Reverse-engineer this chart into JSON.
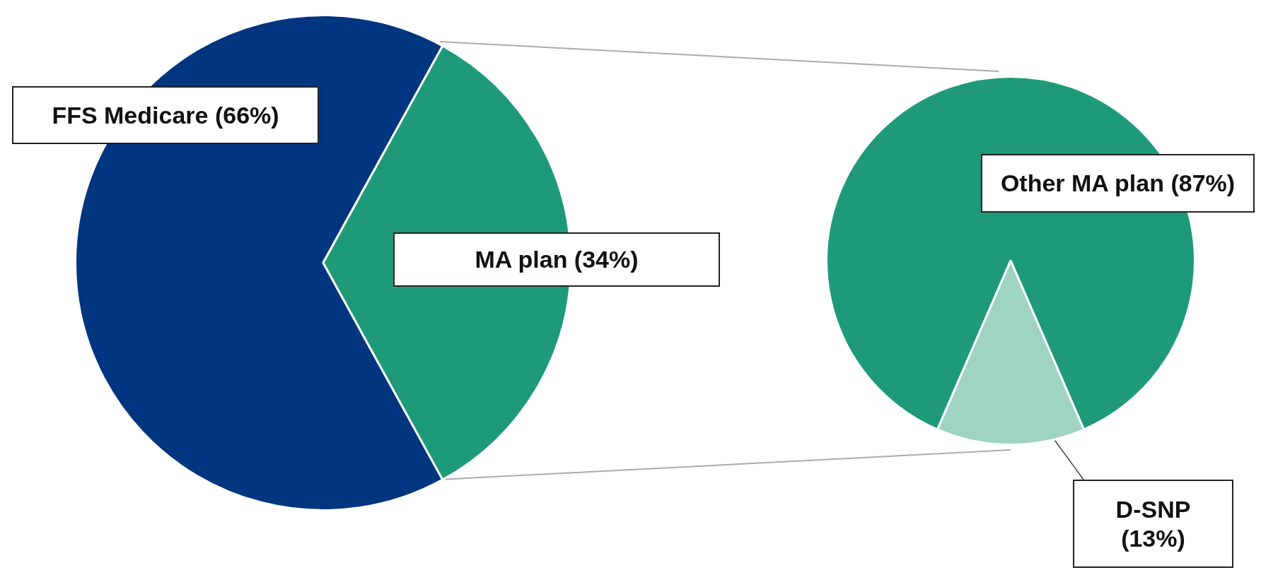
{
  "chart_data": [
    {
      "type": "pie",
      "categories": [
        "FFS Medicare (66%)",
        "MA plan (34%)"
      ],
      "values": [
        66,
        34
      ],
      "colors": [
        "#003580",
        "#1f9a78"
      ]
    },
    {
      "type": "pie",
      "categories": [
        "Other MA plan (87%)",
        "D-SNP (13%)"
      ],
      "values": [
        87,
        13
      ],
      "colors": [
        "#1f9a78",
        "#9fd3c2"
      ]
    }
  ]
}
